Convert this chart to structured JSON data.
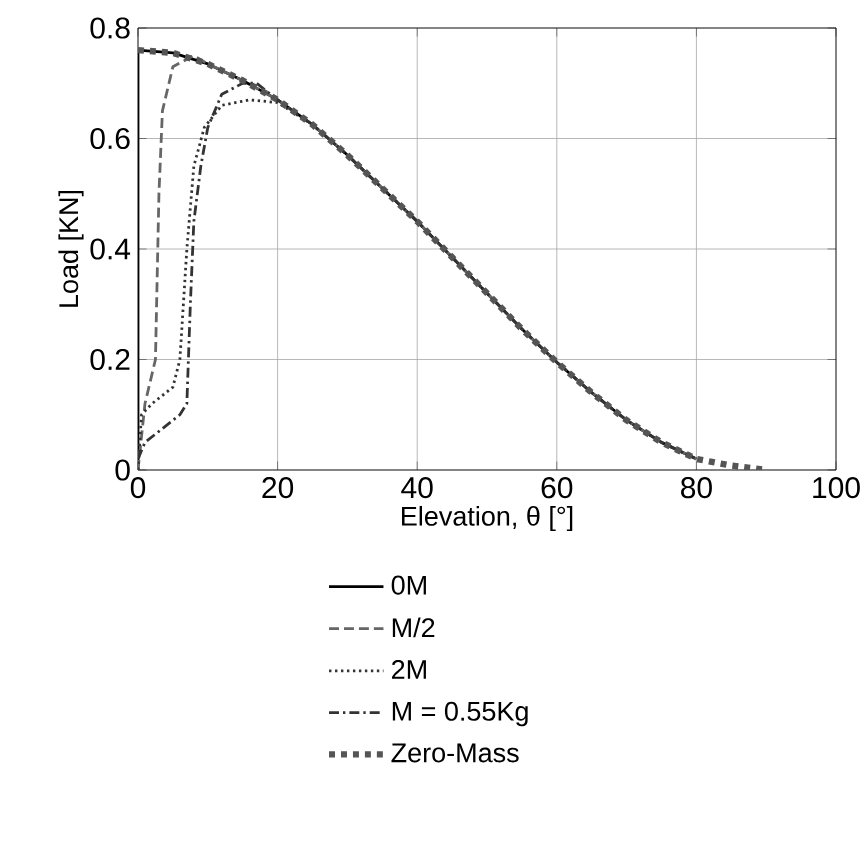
{
  "chart_data": {
    "type": "line",
    "xlabel": "Elevation, θ [°]",
    "ylabel": "Load [KN]",
    "xlim": [
      0,
      100
    ],
    "ylim": [
      0,
      0.8
    ],
    "xticks": [
      0,
      20,
      40,
      60,
      80,
      100
    ],
    "yticks": [
      0,
      0.2,
      0.4,
      0.6,
      0.8
    ],
    "grid": true,
    "legend": "bottom",
    "series": [
      {
        "name": "0M",
        "color": "#000000",
        "line_style": "solid",
        "x": [
          0,
          0,
          5,
          10,
          15,
          20,
          25,
          30,
          35,
          40,
          45,
          50,
          55,
          60,
          65,
          70,
          75,
          80
        ],
        "values": [
          0,
          0.76,
          0.755,
          0.735,
          0.705,
          0.67,
          0.625,
          0.57,
          0.51,
          0.45,
          0.385,
          0.32,
          0.255,
          0.195,
          0.14,
          0.09,
          0.05,
          0.02
        ]
      },
      {
        "name": "M/2",
        "color": "#666666",
        "line_style": "dashed",
        "x": [
          0,
          1,
          2.5,
          3,
          3.5,
          5,
          8,
          10,
          15,
          20,
          25,
          30,
          35,
          40,
          45,
          50,
          55,
          60,
          65,
          70,
          75,
          80
        ],
        "values": [
          0,
          0.12,
          0.2,
          0.5,
          0.65,
          0.73,
          0.75,
          0.735,
          0.705,
          0.67,
          0.625,
          0.57,
          0.51,
          0.45,
          0.385,
          0.32,
          0.255,
          0.195,
          0.14,
          0.09,
          0.05,
          0.02
        ]
      },
      {
        "name": "2M",
        "color": "#333333",
        "line_style": "dotted",
        "x": [
          0,
          0.5,
          2,
          5,
          6,
          7,
          8,
          9.5,
          12,
          16,
          20,
          25,
          30,
          35,
          40,
          45,
          50,
          55,
          60,
          65,
          70,
          75,
          80
        ],
        "values": [
          0,
          0.1,
          0.12,
          0.15,
          0.2,
          0.4,
          0.55,
          0.62,
          0.66,
          0.67,
          0.665,
          0.625,
          0.57,
          0.51,
          0.45,
          0.385,
          0.32,
          0.255,
          0.195,
          0.14,
          0.09,
          0.05,
          0.02
        ]
      },
      {
        "name": "M = 0.55Kg",
        "color": "#333333",
        "line_style": "dashdot",
        "x": [
          0,
          1,
          3,
          6,
          7,
          7.5,
          8,
          9,
          10,
          12,
          15,
          17,
          20,
          25,
          30,
          35,
          40,
          45,
          50,
          55,
          60,
          65,
          70,
          75,
          80
        ],
        "values": [
          0.02,
          0.05,
          0.07,
          0.1,
          0.12,
          0.3,
          0.45,
          0.55,
          0.62,
          0.68,
          0.7,
          0.7,
          0.67,
          0.625,
          0.57,
          0.51,
          0.45,
          0.385,
          0.32,
          0.255,
          0.195,
          0.14,
          0.09,
          0.05,
          0.02
        ]
      },
      {
        "name": "Zero-Mass",
        "color": "#555555",
        "line_style": "thick dotted",
        "x": [
          0,
          5,
          10,
          15,
          20,
          25,
          30,
          35,
          40,
          45,
          50,
          55,
          60,
          65,
          70,
          75,
          80,
          85,
          90
        ],
        "values": [
          0.76,
          0.755,
          0.735,
          0.705,
          0.67,
          0.625,
          0.57,
          0.51,
          0.45,
          0.385,
          0.32,
          0.255,
          0.195,
          0.14,
          0.09,
          0.05,
          0.02,
          0.008,
          0
        ]
      }
    ]
  }
}
